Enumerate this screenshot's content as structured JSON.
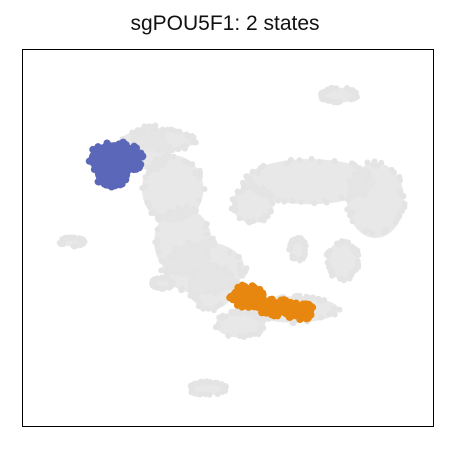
{
  "chart_data": {
    "type": "scatter",
    "title": "sgPOU5F1: 2 states",
    "xlabel": "",
    "ylabel": "",
    "axes": "hidden",
    "grid": false,
    "legend": "none",
    "colors": {
      "background": "#e4e4e4",
      "state_1": "#5b67b8",
      "state_2": "#e8870f"
    },
    "series": [
      {
        "role": "background",
        "color": "#e4e4e4",
        "regions": [
          {
            "shape": "ellipse",
            "cx": 0.365,
            "cy": 0.37,
            "rx": 0.075,
            "ry": 0.09
          },
          {
            "shape": "ellipse",
            "cx": 0.31,
            "cy": 0.26,
            "rx": 0.045,
            "ry": 0.06
          },
          {
            "shape": "ellipse",
            "cx": 0.39,
            "cy": 0.51,
            "rx": 0.07,
            "ry": 0.09
          },
          {
            "shape": "ellipse",
            "cx": 0.46,
            "cy": 0.63,
            "rx": 0.055,
            "ry": 0.06
          },
          {
            "shape": "ellipse",
            "cx": 0.53,
            "cy": 0.73,
            "rx": 0.06,
            "ry": 0.035
          },
          {
            "shape": "ellipse",
            "cx": 0.66,
            "cy": 0.69,
            "rx": 0.11,
            "ry": 0.035
          },
          {
            "shape": "ellipse",
            "cx": 0.7,
            "cy": 0.35,
            "rx": 0.16,
            "ry": 0.06
          },
          {
            "shape": "ellipse",
            "cx": 0.86,
            "cy": 0.4,
            "rx": 0.07,
            "ry": 0.1
          },
          {
            "shape": "ellipse",
            "cx": 0.56,
            "cy": 0.41,
            "rx": 0.05,
            "ry": 0.05
          },
          {
            "shape": "ellipse",
            "cx": 0.78,
            "cy": 0.56,
            "rx": 0.04,
            "ry": 0.05
          },
          {
            "shape": "ellipse",
            "cx": 0.33,
            "cy": 0.24,
            "rx": 0.09,
            "ry": 0.03
          },
          {
            "shape": "ellipse",
            "cx": 0.77,
            "cy": 0.12,
            "rx": 0.045,
            "ry": 0.02
          },
          {
            "shape": "ellipse",
            "cx": 0.12,
            "cy": 0.51,
            "rx": 0.03,
            "ry": 0.012
          },
          {
            "shape": "ellipse",
            "cx": 0.45,
            "cy": 0.9,
            "rx": 0.045,
            "ry": 0.018
          },
          {
            "shape": "ellipse",
            "cx": 0.34,
            "cy": 0.62,
            "rx": 0.025,
            "ry": 0.015
          },
          {
            "shape": "ellipse",
            "cx": 0.67,
            "cy": 0.53,
            "rx": 0.02,
            "ry": 0.03
          },
          {
            "shape": "ellipse",
            "cx": 0.44,
            "cy": 0.58,
            "rx": 0.1,
            "ry": 0.07
          }
        ]
      },
      {
        "role": "state",
        "color": "#5b67b8",
        "regions": [
          {
            "shape": "ellipse",
            "cx": 0.225,
            "cy": 0.29,
            "rx": 0.065,
            "ry": 0.045
          },
          {
            "shape": "ellipse",
            "cx": 0.215,
            "cy": 0.325,
            "rx": 0.04,
            "ry": 0.04
          }
        ]
      },
      {
        "role": "state",
        "color": "#e8870f",
        "regions": [
          {
            "shape": "ellipse",
            "cx": 0.545,
            "cy": 0.655,
            "rx": 0.04,
            "ry": 0.03
          },
          {
            "shape": "ellipse",
            "cx": 0.62,
            "cy": 0.685,
            "rx": 0.045,
            "ry": 0.022
          },
          {
            "shape": "ellipse",
            "cx": 0.675,
            "cy": 0.695,
            "rx": 0.035,
            "ry": 0.022
          }
        ]
      }
    ]
  }
}
